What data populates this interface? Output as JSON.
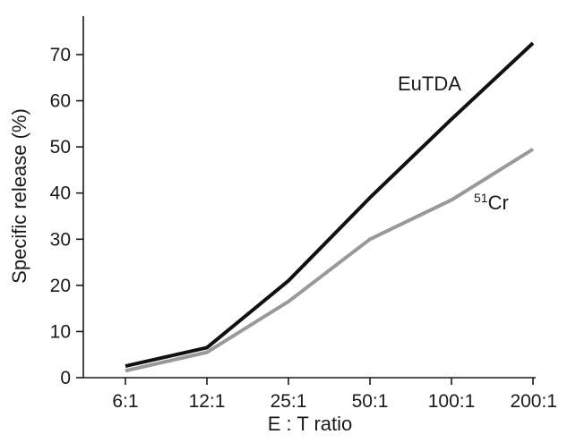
{
  "chart_data": {
    "type": "line",
    "categories": [
      "6:1",
      "12:1",
      "25:1",
      "50:1",
      "100:1",
      "200:1"
    ],
    "series": [
      {
        "name": "EuTDA",
        "values": [
          2.5,
          6.5,
          21,
          39,
          56,
          72.5
        ],
        "color": "#111111"
      },
      {
        "name": "51Cr",
        "values": [
          1.5,
          5.5,
          16.5,
          30,
          38.5,
          49.5
        ],
        "color": "#999999"
      }
    ],
    "yticks": [
      0,
      10,
      20,
      30,
      40,
      50,
      60,
      70
    ],
    "ylim": [
      0,
      78
    ],
    "xlabel": "E : T ratio",
    "ylabel": "Specific release (%)",
    "series_labels": {
      "eutda": "EuTDA",
      "cr_sup": "51",
      "cr_main": "Cr"
    },
    "grid": false,
    "legend": "inline labels near line ends"
  }
}
